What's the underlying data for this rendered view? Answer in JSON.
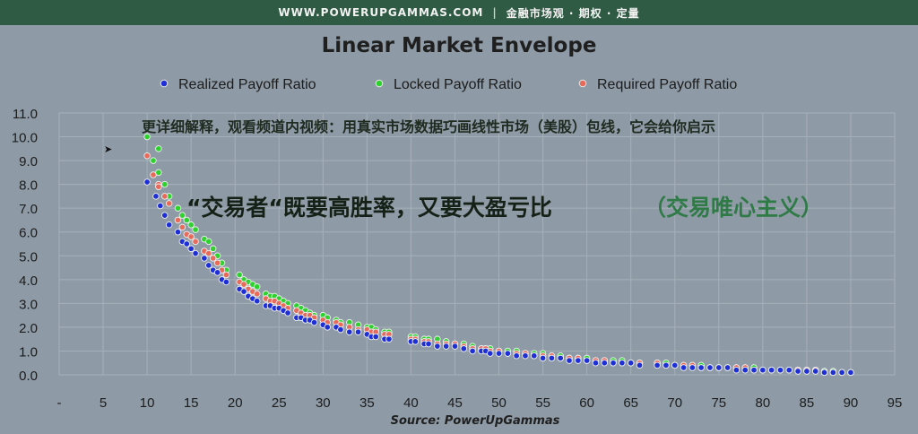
{
  "banner": {
    "site": "WWW.POWERUPGAMMAS.COM",
    "divider": "|",
    "tagline": "金融市场观 · 期权 · 定量"
  },
  "chart_data": {
    "type": "scatter",
    "title": "Linear Market Envelope",
    "xlim": [
      0,
      95
    ],
    "ylim": [
      0,
      11
    ],
    "x_ticks": [
      "-",
      "5",
      "10",
      "15",
      "20",
      "25",
      "30",
      "35",
      "40",
      "45",
      "50",
      "55",
      "60",
      "65",
      "70",
      "75",
      "80",
      "85",
      "90",
      "95"
    ],
    "y_ticks": [
      "0.0",
      "1.0",
      "2.0",
      "3.0",
      "4.0",
      "5.0",
      "6.0",
      "7.0",
      "8.0",
      "9.0",
      "10.0",
      "11.0"
    ],
    "grid": true,
    "legend_position": "top",
    "series": [
      {
        "name": "Realized Payoff Ratio",
        "color": "#1f2fd6",
        "points": [
          [
            10,
            8.1
          ],
          [
            11,
            7.5
          ],
          [
            11.5,
            7.1
          ],
          [
            12,
            6.7
          ],
          [
            12.5,
            6.3
          ],
          [
            13.5,
            6.0
          ],
          [
            14,
            5.6
          ],
          [
            14.5,
            5.5
          ],
          [
            15,
            5.3
          ],
          [
            15.5,
            5.1
          ],
          [
            16.5,
            4.9
          ],
          [
            17,
            4.6
          ],
          [
            17.5,
            4.4
          ],
          [
            18,
            4.3
          ],
          [
            18.5,
            4.0
          ],
          [
            19,
            3.9
          ],
          [
            20.5,
            3.6
          ],
          [
            21,
            3.5
          ],
          [
            21.5,
            3.3
          ],
          [
            22,
            3.2
          ],
          [
            22.5,
            3.1
          ],
          [
            23.5,
            2.9
          ],
          [
            24,
            2.9
          ],
          [
            24.5,
            2.8
          ],
          [
            25,
            2.8
          ],
          [
            25.5,
            2.7
          ],
          [
            26,
            2.6
          ],
          [
            27,
            2.4
          ],
          [
            27.5,
            2.4
          ],
          [
            28,
            2.3
          ],
          [
            28.5,
            2.3
          ],
          [
            29,
            2.2
          ],
          [
            30,
            2.1
          ],
          [
            30.5,
            2.0
          ],
          [
            31.5,
            2.0
          ],
          [
            32,
            1.9
          ],
          [
            33,
            1.8
          ],
          [
            34,
            1.8
          ],
          [
            35,
            1.7
          ],
          [
            35.5,
            1.6
          ],
          [
            36,
            1.6
          ],
          [
            37,
            1.5
          ],
          [
            37.5,
            1.5
          ],
          [
            40,
            1.4
          ],
          [
            40.5,
            1.4
          ],
          [
            41.5,
            1.3
          ],
          [
            42,
            1.3
          ],
          [
            43,
            1.2
          ],
          [
            44,
            1.2
          ],
          [
            45,
            1.2
          ],
          [
            46,
            1.1
          ],
          [
            47,
            1.0
          ],
          [
            48,
            1.0
          ],
          [
            48.5,
            1.0
          ],
          [
            49,
            0.9
          ],
          [
            50,
            0.9
          ],
          [
            51,
            0.9
          ],
          [
            52,
            0.8
          ],
          [
            53,
            0.8
          ],
          [
            54,
            0.8
          ],
          [
            55,
            0.7
          ],
          [
            56,
            0.7
          ],
          [
            57,
            0.7
          ],
          [
            58,
            0.6
          ],
          [
            59,
            0.6
          ],
          [
            60,
            0.6
          ],
          [
            61,
            0.5
          ],
          [
            62,
            0.5
          ],
          [
            63,
            0.5
          ],
          [
            64,
            0.5
          ],
          [
            65,
            0.5
          ],
          [
            66,
            0.4
          ],
          [
            68,
            0.4
          ],
          [
            69,
            0.4
          ],
          [
            70,
            0.4
          ],
          [
            71,
            0.3
          ],
          [
            72,
            0.3
          ],
          [
            73,
            0.3
          ],
          [
            74,
            0.3
          ],
          [
            75,
            0.3
          ],
          [
            76,
            0.3
          ],
          [
            77,
            0.2
          ],
          [
            78,
            0.2
          ],
          [
            79,
            0.2
          ],
          [
            80,
            0.2
          ],
          [
            81,
            0.2
          ],
          [
            82,
            0.2
          ],
          [
            83,
            0.2
          ],
          [
            84,
            0.15
          ],
          [
            85,
            0.15
          ],
          [
            86,
            0.15
          ],
          [
            87,
            0.1
          ],
          [
            88,
            0.1
          ],
          [
            89,
            0.1
          ],
          [
            90,
            0.1
          ]
        ]
      },
      {
        "name": "Locked Payoff Ratio",
        "color": "#2ed12e",
        "points": [
          [
            10,
            10.0
          ],
          [
            10.7,
            9.0
          ],
          [
            11.3,
            9.5
          ],
          [
            11.3,
            8.5
          ],
          [
            12,
            8.0
          ],
          [
            12.5,
            7.5
          ],
          [
            13.5,
            7.0
          ],
          [
            14,
            6.7
          ],
          [
            14.5,
            6.5
          ],
          [
            15,
            6.3
          ],
          [
            15.5,
            6.1
          ],
          [
            16.5,
            5.7
          ],
          [
            17,
            5.6
          ],
          [
            17.5,
            5.3
          ],
          [
            18,
            5.0
          ],
          [
            18.5,
            4.7
          ],
          [
            19,
            4.4
          ],
          [
            20.5,
            4.2
          ],
          [
            21,
            4.0
          ],
          [
            21.5,
            3.9
          ],
          [
            22,
            3.8
          ],
          [
            22.5,
            3.7
          ],
          [
            23.5,
            3.4
          ],
          [
            24,
            3.3
          ],
          [
            24.5,
            3.3
          ],
          [
            25,
            3.2
          ],
          [
            25.5,
            3.1
          ],
          [
            26,
            3.0
          ],
          [
            27,
            2.9
          ],
          [
            27.5,
            2.8
          ],
          [
            28,
            2.7
          ],
          [
            28.5,
            2.6
          ],
          [
            29,
            2.5
          ],
          [
            30,
            2.5
          ],
          [
            30.5,
            2.4
          ],
          [
            31.5,
            2.3
          ],
          [
            32,
            2.2
          ],
          [
            33,
            2.2
          ],
          [
            34,
            2.1
          ],
          [
            35,
            2.0
          ],
          [
            35.5,
            2.0
          ],
          [
            36,
            1.9
          ],
          [
            37,
            1.8
          ],
          [
            37.5,
            1.8
          ],
          [
            40,
            1.6
          ],
          [
            40.5,
            1.6
          ],
          [
            41.5,
            1.5
          ],
          [
            42,
            1.5
          ],
          [
            43,
            1.5
          ],
          [
            44,
            1.4
          ],
          [
            45,
            1.3
          ],
          [
            46,
            1.3
          ],
          [
            47,
            1.2
          ],
          [
            48,
            1.1
          ],
          [
            48.5,
            1.1
          ],
          [
            49,
            1.1
          ],
          [
            50,
            1.0
          ],
          [
            51,
            1.0
          ],
          [
            52,
            1.0
          ],
          [
            53,
            0.9
          ],
          [
            54,
            0.9
          ],
          [
            55,
            0.9
          ],
          [
            56,
            0.8
          ],
          [
            57,
            0.8
          ],
          [
            58,
            0.7
          ],
          [
            59,
            0.7
          ],
          [
            60,
            0.7
          ],
          [
            61,
            0.6
          ],
          [
            62,
            0.6
          ],
          [
            63,
            0.6
          ],
          [
            64,
            0.6
          ],
          [
            65,
            0.5
          ],
          [
            66,
            0.5
          ],
          [
            68,
            0.5
          ],
          [
            69,
            0.5
          ],
          [
            70,
            0.4
          ],
          [
            71,
            0.4
          ],
          [
            72,
            0.4
          ],
          [
            73,
            0.4
          ],
          [
            74,
            0.3
          ],
          [
            75,
            0.3
          ],
          [
            76,
            0.3
          ],
          [
            77,
            0.3
          ],
          [
            78,
            0.3
          ],
          [
            79,
            0.3
          ],
          [
            80,
            0.2
          ],
          [
            81,
            0.2
          ],
          [
            82,
            0.2
          ],
          [
            83,
            0.2
          ],
          [
            84,
            0.2
          ],
          [
            85,
            0.2
          ],
          [
            86,
            0.2
          ],
          [
            87,
            0.15
          ],
          [
            88,
            0.15
          ],
          [
            89,
            0.1
          ],
          [
            90,
            0.1
          ]
        ]
      },
      {
        "name": "Required Payoff Ratio",
        "color": "#e76a5b",
        "points": [
          [
            10,
            9.2
          ],
          [
            10.7,
            8.4
          ],
          [
            11.3,
            8.0
          ],
          [
            11.3,
            7.9
          ],
          [
            12,
            7.5
          ],
          [
            12.5,
            7.2
          ],
          [
            13.5,
            6.5
          ],
          [
            14,
            6.2
          ],
          [
            14.5,
            5.9
          ],
          [
            15,
            5.8
          ],
          [
            15.5,
            5.6
          ],
          [
            16.5,
            5.2
          ],
          [
            17,
            5.1
          ],
          [
            17.5,
            4.9
          ],
          [
            18,
            4.7
          ],
          [
            18.5,
            4.4
          ],
          [
            19,
            4.2
          ],
          [
            20.5,
            3.9
          ],
          [
            21,
            3.8
          ],
          [
            21.5,
            3.6
          ],
          [
            22,
            3.5
          ],
          [
            22.5,
            3.4
          ],
          [
            23.5,
            3.2
          ],
          [
            24,
            3.1
          ],
          [
            24.5,
            3.1
          ],
          [
            25,
            3.0
          ],
          [
            25.5,
            2.9
          ],
          [
            26,
            2.8
          ],
          [
            27,
            2.7
          ],
          [
            27.5,
            2.6
          ],
          [
            28,
            2.5
          ],
          [
            28.5,
            2.5
          ],
          [
            29,
            2.4
          ],
          [
            30,
            2.3
          ],
          [
            30.5,
            2.2
          ],
          [
            31.5,
            2.2
          ],
          [
            32,
            2.1
          ],
          [
            33,
            2.0
          ],
          [
            34,
            1.9
          ],
          [
            35,
            1.9
          ],
          [
            35.5,
            1.8
          ],
          [
            36,
            1.8
          ],
          [
            37,
            1.7
          ],
          [
            37.5,
            1.7
          ],
          [
            40,
            1.5
          ],
          [
            40.5,
            1.5
          ],
          [
            41.5,
            1.4
          ],
          [
            42,
            1.4
          ],
          [
            43,
            1.3
          ],
          [
            44,
            1.3
          ],
          [
            45,
            1.3
          ],
          [
            46,
            1.2
          ],
          [
            47,
            1.1
          ],
          [
            48,
            1.1
          ],
          [
            48.5,
            1.1
          ],
          [
            49,
            1.0
          ],
          [
            50,
            1.0
          ],
          [
            51,
            0.9
          ],
          [
            52,
            0.9
          ],
          [
            53,
            0.9
          ],
          [
            54,
            0.8
          ],
          [
            55,
            0.8
          ],
          [
            56,
            0.8
          ],
          [
            57,
            0.7
          ],
          [
            58,
            0.7
          ],
          [
            59,
            0.7
          ],
          [
            60,
            0.6
          ],
          [
            61,
            0.6
          ],
          [
            62,
            0.6
          ],
          [
            63,
            0.5
          ],
          [
            64,
            0.5
          ],
          [
            65,
            0.5
          ],
          [
            66,
            0.5
          ],
          [
            68,
            0.5
          ],
          [
            69,
            0.4
          ],
          [
            70,
            0.4
          ],
          [
            71,
            0.4
          ],
          [
            72,
            0.4
          ],
          [
            73,
            0.3
          ],
          [
            74,
            0.3
          ],
          [
            75,
            0.3
          ],
          [
            76,
            0.3
          ],
          [
            77,
            0.3
          ],
          [
            78,
            0.3
          ],
          [
            79,
            0.2
          ],
          [
            80,
            0.2
          ],
          [
            81,
            0.2
          ],
          [
            82,
            0.2
          ],
          [
            83,
            0.2
          ],
          [
            84,
            0.2
          ],
          [
            85,
            0.2
          ],
          [
            86,
            0.2
          ],
          [
            87,
            0.1
          ],
          [
            88,
            0.1
          ],
          [
            89,
            0.1
          ],
          [
            90,
            0.1
          ]
        ]
      }
    ],
    "annotations": [
      {
        "text": "更详细解释，观看频道内视频：用真实市场数据巧画线性市场（美股）包线，它会给你启示",
        "color": "#1f2b20"
      },
      {
        "text": "“交易者“既要高胜率，又要大盈亏比",
        "color": "#152117"
      },
      {
        "text": "（交易唯心主义）",
        "color": "#2f7a47"
      }
    ]
  },
  "source": "Source: PowerUpGammas"
}
